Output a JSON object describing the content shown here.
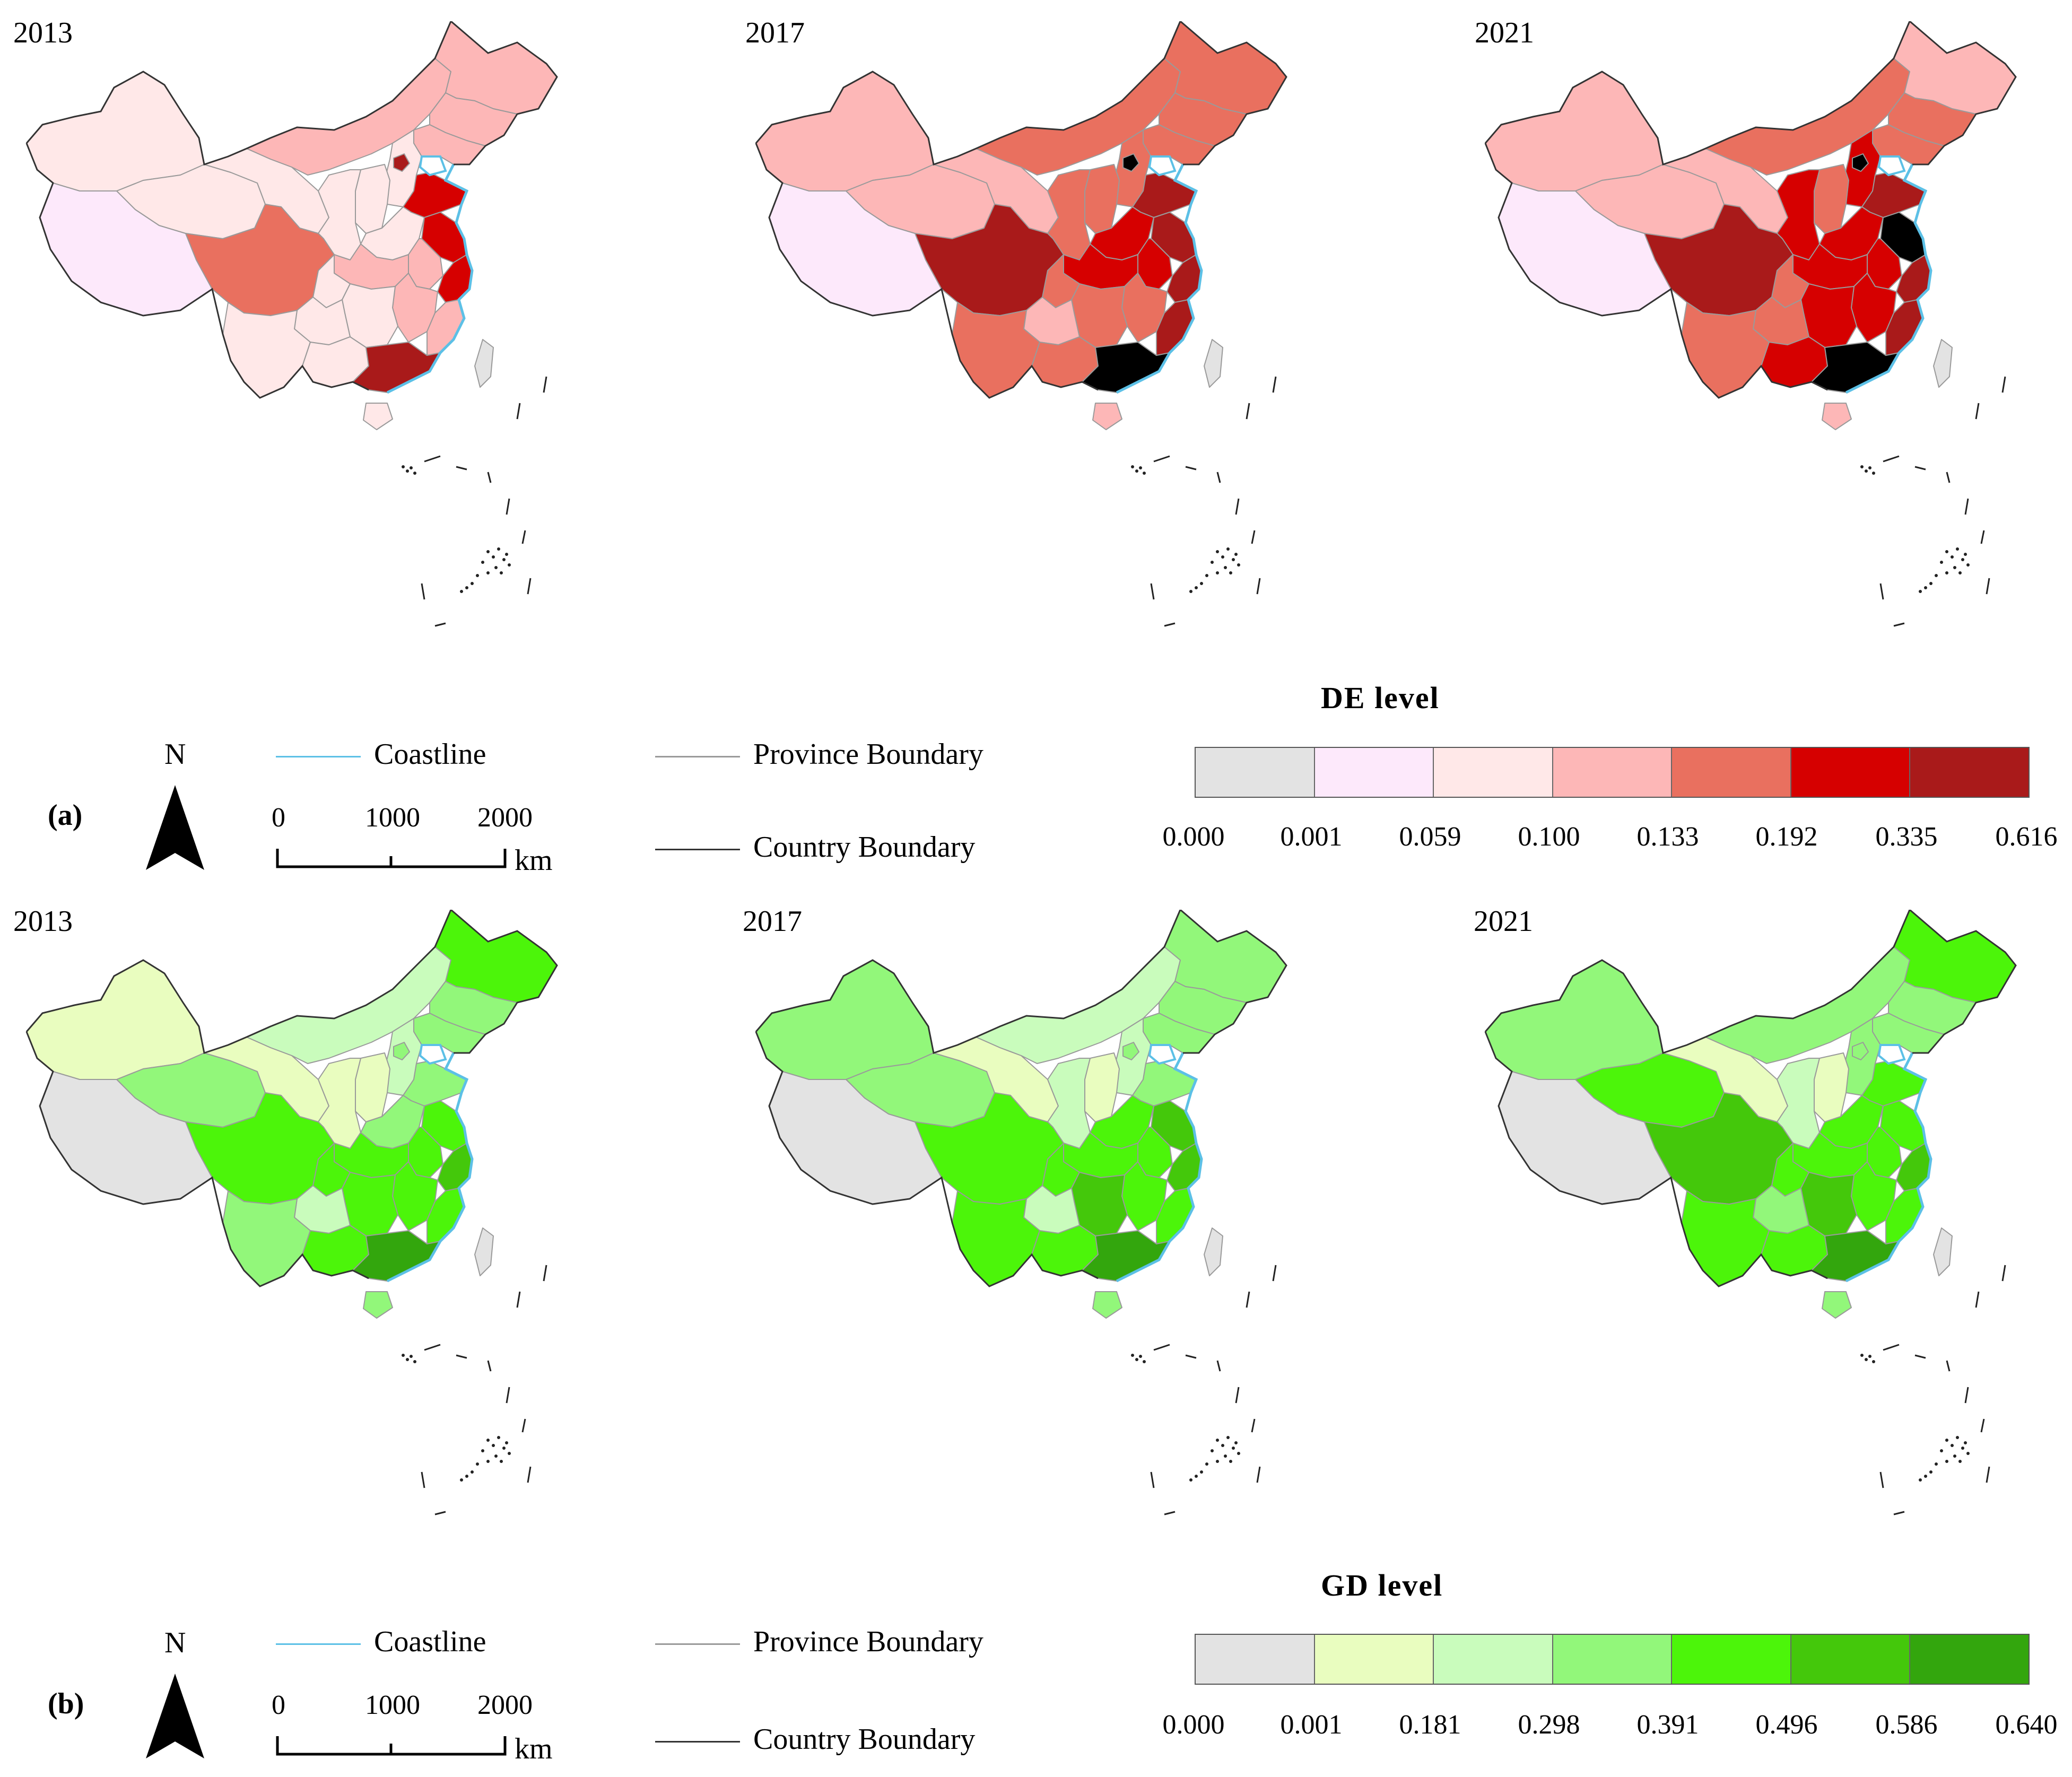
{
  "panel_a": {
    "label": "(a)",
    "years": [
      "2013",
      "2017",
      "2021"
    ],
    "legend_title": "DE  level",
    "breaks": [
      "0.000",
      "0.001",
      "0.059",
      "0.100",
      "0.133",
      "0.192",
      "0.335",
      "0.616"
    ],
    "colors": [
      "#e3e3e3",
      "#fde9fb",
      "#ffe8e8",
      "#fdb7b7",
      "#e9705f",
      "#d60000",
      "#a91a1a"
    ]
  },
  "panel_b": {
    "label": "(b)",
    "years": [
      "2013",
      "2017",
      "2021"
    ],
    "legend_title": "GD  level",
    "breaks": [
      "0.000",
      "0.001",
      "0.181",
      "0.298",
      "0.391",
      "0.496",
      "0.586",
      "0.640"
    ],
    "colors": [
      "#e3e3e3",
      "#e9fdbf",
      "#c9fcbc",
      "#92f77a",
      "#4cf50a",
      "#44c80b",
      "#33a60d"
    ]
  },
  "legend_items": {
    "north": "N",
    "coastline": "Coastline",
    "province_boundary": "Province Boundary",
    "country_boundary": "Country Boundary",
    "scale_ticks": [
      "0",
      "1000",
      "2000"
    ],
    "scale_unit": "km"
  },
  "line_colors": {
    "coastline": "#5cc0e6",
    "province": "#9a9a9a",
    "country": "#333333"
  },
  "region_classes": {
    "a2013": {
      "xinjiang": 2,
      "tibet": 1,
      "qinghai": 2,
      "gansu": 2,
      "inner_mongolia": 3,
      "heilongjiang": 3,
      "jilin": 3,
      "liaoning": 3,
      "hebei": 2,
      "beijing": 6,
      "shandong": 5,
      "henan": 2,
      "shaanxi": 2,
      "shanxi": 2,
      "sichuan": 4,
      "chongqing": 2,
      "yunnan": 2,
      "guizhou": 2,
      "guangxi": 2,
      "guangdong": 6,
      "hunan": 2,
      "jiangxi": 3,
      "hubei": 3,
      "anhui": 3,
      "jiangsu": 5,
      "zhejiang": 5,
      "fujian": 3,
      "hainan": 2,
      "taiwan": 0
    },
    "a2017": {
      "xinjiang": 3,
      "tibet": 1,
      "qinghai": 3,
      "gansu": 3,
      "inner_mongolia": 4,
      "heilongjiang": 4,
      "jilin": 4,
      "liaoning": 4,
      "hebei": 4,
      "beijing": 7,
      "shandong": 6,
      "henan": 5,
      "shaanxi": 4,
      "shanxi": 4,
      "sichuan": 6,
      "chongqing": 4,
      "yunnan": 4,
      "guizhou": 3,
      "guangxi": 4,
      "guangdong": 7,
      "hunan": 4,
      "jiangxi": 4,
      "hubei": 5,
      "anhui": 5,
      "jiangsu": 6,
      "zhejiang": 6,
      "fujian": 6,
      "hainan": 3,
      "taiwan": 0
    },
    "a2021": {
      "xinjiang": 3,
      "tibet": 1,
      "qinghai": 3,
      "gansu": 3,
      "inner_mongolia": 4,
      "heilongjiang": 3,
      "jilin": 4,
      "liaoning": 4,
      "hebei": 5,
      "beijing": 7,
      "shandong": 6,
      "henan": 5,
      "shaanxi": 5,
      "shanxi": 4,
      "sichuan": 6,
      "chongqing": 4,
      "yunnan": 4,
      "guizhou": 4,
      "guangxi": 5,
      "guangdong": 7,
      "hunan": 5,
      "jiangxi": 5,
      "hubei": 5,
      "anhui": 5,
      "jiangsu": 7,
      "zhejiang": 6,
      "fujian": 6,
      "hainan": 3,
      "taiwan": 0
    },
    "b2013": {
      "xinjiang": 1,
      "tibet": 0,
      "qinghai": 3,
      "gansu": 1,
      "inner_mongolia": 2,
      "heilongjiang": 4,
      "jilin": 3,
      "liaoning": 3,
      "hebei": 2,
      "beijing": 3,
      "shandong": 3,
      "henan": 3,
      "shaanxi": 1,
      "shanxi": 1,
      "sichuan": 4,
      "chongqing": 4,
      "yunnan": 3,
      "guizhou": 2,
      "guangxi": 4,
      "guangdong": 6,
      "hunan": 4,
      "jiangxi": 4,
      "hubei": 4,
      "anhui": 4,
      "jiangsu": 4,
      "zhejiang": 5,
      "fujian": 4,
      "hainan": 3,
      "taiwan": 0
    },
    "b2017": {
      "xinjiang": 3,
      "tibet": 0,
      "qinghai": 3,
      "gansu": 1,
      "inner_mongolia": 2,
      "heilongjiang": 3,
      "jilin": 3,
      "liaoning": 3,
      "hebei": 2,
      "beijing": 3,
      "shandong": 3,
      "henan": 4,
      "shaanxi": 2,
      "shanxi": 1,
      "sichuan": 4,
      "chongqing": 4,
      "yunnan": 4,
      "guizhou": 2,
      "guangxi": 4,
      "guangdong": 6,
      "hunan": 5,
      "jiangxi": 4,
      "hubei": 4,
      "anhui": 4,
      "jiangsu": 5,
      "zhejiang": 5,
      "fujian": 4,
      "hainan": 3,
      "taiwan": 0
    },
    "b2021": {
      "xinjiang": 3,
      "tibet": 0,
      "qinghai": 4,
      "gansu": 1,
      "inner_mongolia": 3,
      "heilongjiang": 4,
      "jilin": 3,
      "liaoning": 3,
      "hebei": 3,
      "beijing": 3,
      "shandong": 4,
      "henan": 4,
      "shaanxi": 2,
      "shanxi": 1,
      "sichuan": 5,
      "chongqing": 4,
      "yunnan": 4,
      "guizhou": 3,
      "guangxi": 4,
      "guangdong": 6,
      "hunan": 5,
      "jiangxi": 4,
      "hubei": 4,
      "anhui": 4,
      "jiangsu": 4,
      "zhejiang": 5,
      "fujian": 4,
      "hainan": 3,
      "taiwan": 0
    }
  }
}
